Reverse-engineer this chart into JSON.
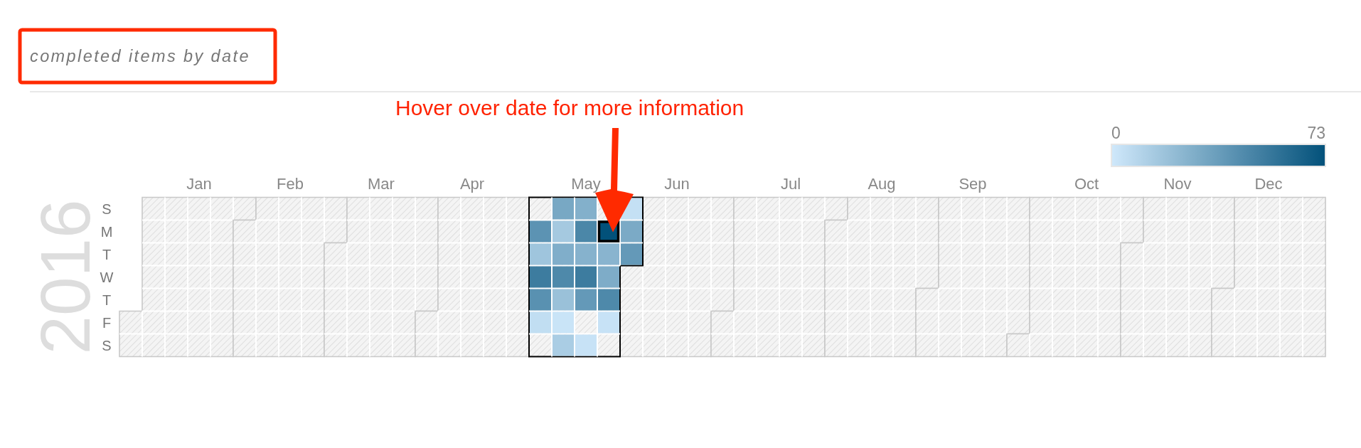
{
  "chart_data": {
    "type": "heatmap",
    "title": "completed items by date",
    "ylabel": "2016",
    "annotations": [
      "Hover over date for more information"
    ],
    "categories": [
      null,
      null,
      null,
      "Jan",
      null,
      null,
      null,
      "Feb",
      null,
      null,
      null,
      "Mar",
      null,
      null,
      null,
      "Apr",
      null,
      null,
      null,
      null,
      "May",
      null,
      null,
      null,
      "Jun",
      null,
      null,
      null,
      null,
      "Jul",
      null,
      null,
      null,
      "Aug",
      null,
      null,
      null,
      "Sep",
      null,
      null,
      null,
      null,
      "Oct",
      null,
      null,
      null,
      "Nov",
      null,
      null,
      null,
      "Dec",
      null,
      null
    ],
    "y_categories": [
      "S",
      "M",
      "T",
      "W",
      "T",
      "F",
      "S"
    ],
    "cells": [
      [
        null,
        null,
        null,
        null,
        null,
        null,
        null,
        null,
        null,
        null,
        null,
        null,
        null,
        null,
        null,
        null,
        null,
        null,
        null,
        31,
        27,
        null,
        4,
        null,
        null,
        null,
        null,
        null,
        null,
        null,
        null,
        null,
        null,
        null,
        null,
        null,
        null,
        null,
        null,
        null,
        null,
        null,
        null,
        null,
        null,
        null,
        null,
        null,
        null,
        null,
        null,
        null,
        null
      ],
      [
        null,
        null,
        null,
        null,
        null,
        null,
        null,
        null,
        null,
        null,
        null,
        null,
        null,
        null,
        null,
        null,
        null,
        null,
        41,
        15,
        47,
        73,
        30,
        null,
        null,
        null,
        null,
        null,
        null,
        null,
        null,
        null,
        null,
        null,
        null,
        null,
        null,
        null,
        null,
        null,
        null,
        null,
        null,
        null,
        null,
        null,
        null,
        null,
        null,
        null,
        null,
        null,
        null
      ],
      [
        null,
        null,
        null,
        null,
        null,
        null,
        null,
        null,
        null,
        null,
        null,
        null,
        null,
        null,
        null,
        null,
        null,
        null,
        17,
        28,
        26,
        25,
        38,
        null,
        null,
        null,
        null,
        null,
        null,
        null,
        null,
        null,
        null,
        null,
        null,
        null,
        null,
        null,
        null,
        null,
        null,
        null,
        null,
        null,
        null,
        null,
        null,
        null,
        null,
        null,
        null,
        null,
        null
      ],
      [
        null,
        null,
        null,
        null,
        null,
        null,
        null,
        null,
        null,
        null,
        null,
        null,
        null,
        null,
        null,
        null,
        null,
        null,
        52,
        46,
        52,
        29,
        null,
        null,
        null,
        null,
        null,
        null,
        null,
        null,
        null,
        null,
        null,
        null,
        null,
        null,
        null,
        null,
        null,
        null,
        null,
        null,
        null,
        null,
        null,
        null,
        null,
        null,
        null,
        null,
        null,
        null,
        null
      ],
      [
        null,
        null,
        null,
        null,
        null,
        null,
        null,
        null,
        null,
        null,
        null,
        null,
        null,
        null,
        null,
        null,
        null,
        null,
        42,
        19,
        38,
        46,
        null,
        null,
        null,
        null,
        null,
        null,
        null,
        null,
        null,
        null,
        null,
        null,
        null,
        null,
        null,
        null,
        null,
        null,
        null,
        null,
        null,
        null,
        null,
        null,
        null,
        null,
        null,
        null,
        null,
        null,
        null
      ],
      [
        null,
        null,
        null,
        null,
        null,
        null,
        null,
        null,
        null,
        null,
        null,
        null,
        null,
        null,
        null,
        null,
        null,
        null,
        5,
        2,
        null,
        3,
        null,
        null,
        null,
        null,
        null,
        null,
        null,
        null,
        null,
        null,
        null,
        null,
        null,
        null,
        null,
        null,
        null,
        null,
        null,
        null,
        null,
        null,
        null,
        null,
        null,
        null,
        null,
        null,
        null,
        null,
        null
      ],
      [
        null,
        null,
        null,
        null,
        null,
        null,
        null,
        null,
        null,
        null,
        null,
        null,
        null,
        null,
        null,
        null,
        null,
        null,
        null,
        13,
        3,
        null,
        null,
        null,
        null,
        null,
        null,
        null,
        null,
        null,
        null,
        null,
        null,
        null,
        null,
        null,
        null,
        null,
        null,
        null,
        null,
        null,
        null,
        null,
        null,
        null,
        null,
        null,
        null,
        null,
        null,
        null,
        null
      ]
    ],
    "clim": [
      0,
      73
    ],
    "cticks": [
      0,
      73
    ]
  }
}
